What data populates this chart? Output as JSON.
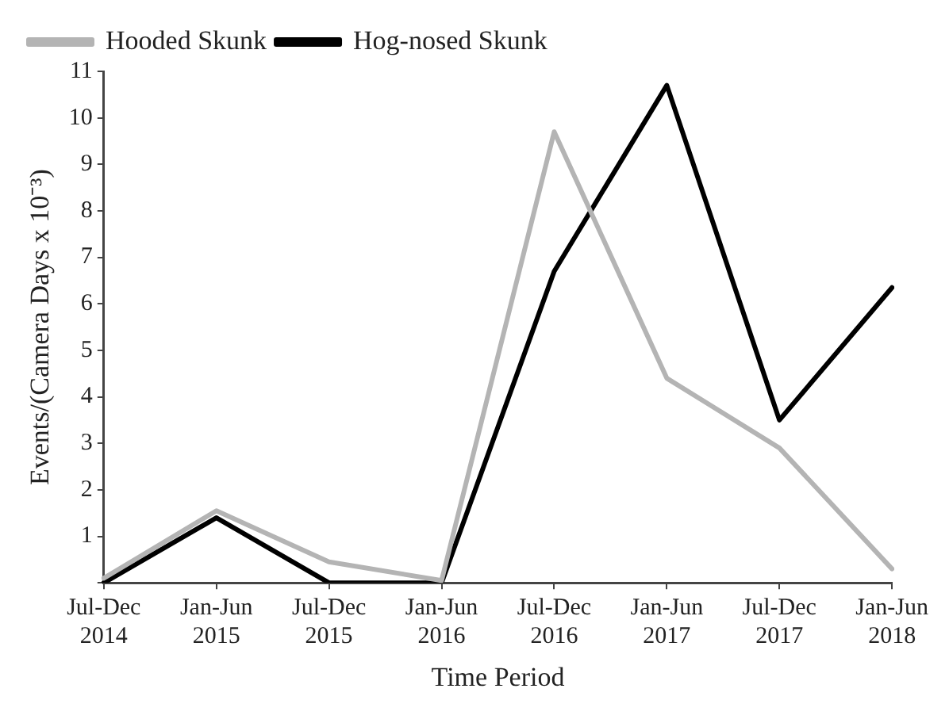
{
  "chart_data": {
    "type": "line",
    "xlabel": "Time Period",
    "ylabel": "Events/(Camera Days x 10⁻³)",
    "categories": [
      "Jul-Dec 2014",
      "Jan-Jun 2015",
      "Jul-Dec 2015",
      "Jan-Jun 2016",
      "Jul-Dec 2016",
      "Jan-Jun 2017",
      "Jul-Dec 2017",
      "Jan-Jun 2018"
    ],
    "series": [
      {
        "name": "Hooded Skunk",
        "color": "#b4b4b4",
        "values": [
          0.1,
          1.55,
          0.45,
          0.05,
          9.7,
          4.4,
          2.9,
          0.3
        ]
      },
      {
        "name": "Hog-nosed Skunk",
        "color": "#000000",
        "values": [
          0,
          1.4,
          0,
          0,
          6.7,
          10.7,
          3.5,
          6.35
        ]
      }
    ],
    "ylim": [
      0,
      11
    ],
    "yticks": [
      {
        "value": 0,
        "label": null
      },
      1,
      2,
      3,
      4,
      5,
      6,
      7,
      8,
      9,
      10,
      11
    ],
    "grid": false,
    "legend": "top left",
    "marker": "none",
    "line_style": "solid"
  }
}
